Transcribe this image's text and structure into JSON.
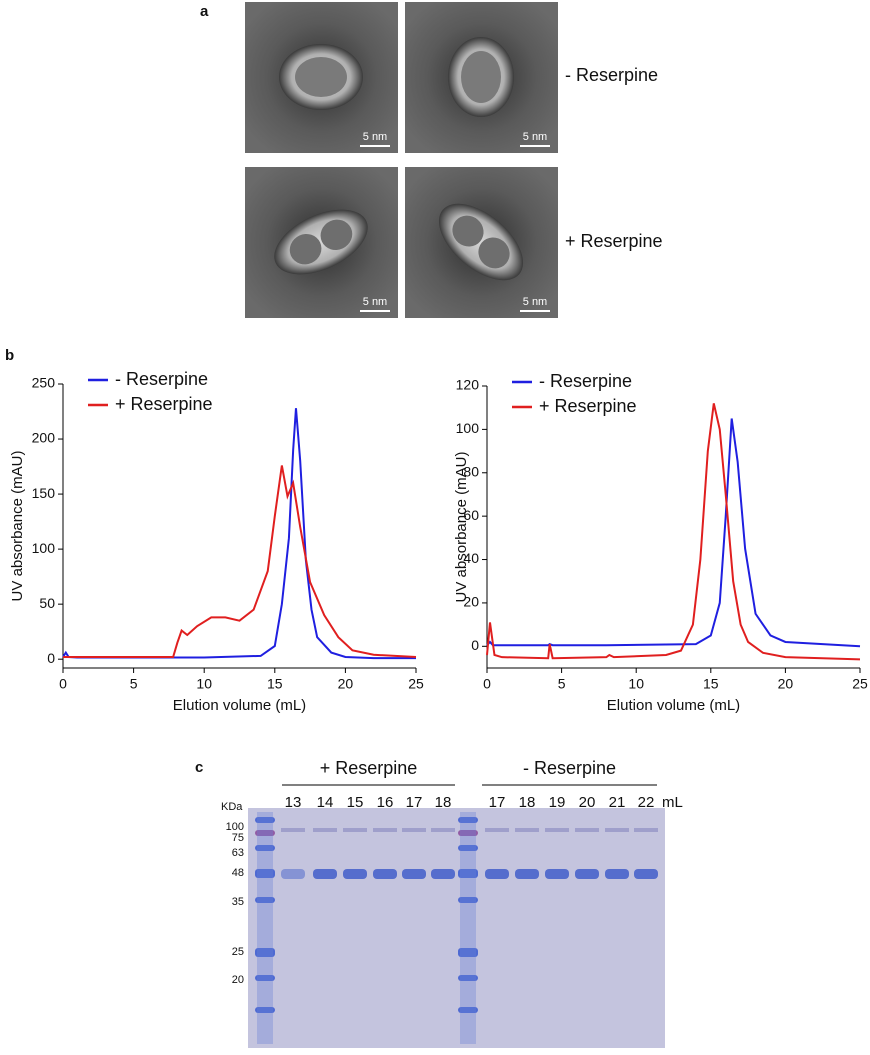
{
  "panel_a": {
    "label": "a",
    "rows": [
      "- Reserpine",
      "+ Reserpine"
    ],
    "scale_bar": "5 nm"
  },
  "panel_b": {
    "label": "b"
  },
  "chart_data": [
    {
      "type": "line",
      "xlabel": "Elution volume (mL)",
      "ylabel": "UV absorbance (mAU)",
      "xlim": [
        0,
        25
      ],
      "ylim": [
        -8,
        250
      ],
      "xticks": [
        0,
        5,
        10,
        15,
        20,
        25
      ],
      "yticks": [
        0,
        50,
        100,
        150,
        200,
        250
      ],
      "legend": "upper left",
      "series": [
        {
          "name": "- Reserpine",
          "color": "#1f1fe0",
          "x": [
            0,
            0.2,
            0.4,
            1,
            5,
            10,
            14,
            15,
            15.5,
            16,
            16.3,
            16.5,
            16.8,
            17.2,
            17.6,
            18,
            19,
            20,
            22,
            25
          ],
          "values": [
            2,
            6,
            2,
            1.5,
            1.5,
            1.5,
            3,
            12,
            50,
            110,
            190,
            228,
            180,
            90,
            45,
            20,
            6,
            2,
            1,
            1
          ]
        },
        {
          "name": "+ Reserpine",
          "color": "#e01f1f",
          "x": [
            0,
            2,
            5,
            7.8,
            8.1,
            8.4,
            8.8,
            9.5,
            10.5,
            11.5,
            12.5,
            13.5,
            14.5,
            15,
            15.5,
            15.9,
            16.3,
            16.8,
            17.5,
            18.5,
            19.5,
            20.5,
            22,
            25
          ],
          "values": [
            2,
            2,
            2,
            2,
            15,
            26,
            22,
            30,
            38,
            38,
            35,
            45,
            80,
            130,
            176,
            148,
            160,
            120,
            70,
            40,
            20,
            8,
            4,
            2
          ]
        }
      ]
    },
    {
      "type": "line",
      "xlabel": "Elution volume (mL)",
      "ylabel": "UV absorbance (mAU)",
      "xlim": [
        0,
        25
      ],
      "ylim": [
        -10,
        120
      ],
      "xticks": [
        0,
        5,
        10,
        15,
        20,
        25
      ],
      "yticks": [
        0,
        20,
        40,
        60,
        80,
        100,
        120
      ],
      "legend": "upper left",
      "series": [
        {
          "name": "- Reserpine",
          "color": "#1f1fe0",
          "x": [
            0,
            0.2,
            0.4,
            4.1,
            4.2,
            4.4,
            8,
            14,
            15,
            15.6,
            16,
            16.4,
            16.8,
            17.3,
            18,
            19,
            20,
            25
          ],
          "values": [
            0.5,
            2,
            0.5,
            0.5,
            1,
            0.5,
            0.5,
            1,
            5,
            20,
            60,
            105,
            85,
            45,
            15,
            5,
            2,
            0
          ]
        },
        {
          "name": "+ Reserpine",
          "color": "#e01f1f",
          "x": [
            0,
            0.2,
            0.5,
            1,
            4.1,
            4.2,
            4.4,
            8,
            8.2,
            8.5,
            12,
            13,
            13.8,
            14.3,
            14.8,
            15.2,
            15.6,
            16,
            16.5,
            17,
            17.5,
            18.5,
            20,
            25
          ],
          "values": [
            -4,
            11,
            -4,
            -5,
            -5.5,
            1,
            -5.5,
            -5,
            -4,
            -5,
            -4,
            -2,
            10,
            40,
            90,
            112,
            100,
            70,
            30,
            10,
            2,
            -3,
            -5,
            -6
          ]
        }
      ]
    }
  ],
  "panel_c": {
    "label": "c",
    "marker_title": "KDa",
    "unit": "mL",
    "markers": [
      "100",
      "75",
      "63",
      "48",
      "35",
      "25",
      "20"
    ],
    "groups": [
      {
        "name": "+ Reserpine",
        "lanes": [
          "13",
          "14",
          "15",
          "16",
          "17",
          "18"
        ]
      },
      {
        "name": "- Reserpine",
        "lanes": [
          "17",
          "18",
          "19",
          "20",
          "21",
          "22"
        ]
      }
    ]
  }
}
